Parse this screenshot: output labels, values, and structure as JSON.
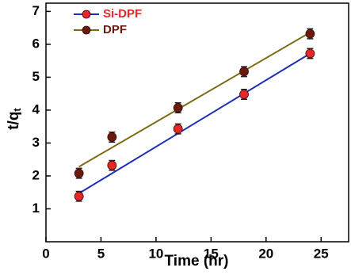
{
  "chart_data": {
    "type": "scatter",
    "x_label": "Time (hr)",
    "y_label": "t/q",
    "y_label_subscript": "t",
    "xlim": [
      0,
      27.5
    ],
    "ylim": [
      0,
      7.25
    ],
    "xticks": [
      0,
      5,
      10,
      15,
      20,
      25
    ],
    "yticks": [
      1,
      2,
      3,
      4,
      5,
      6,
      7
    ],
    "legend": "upper-left",
    "series": [
      {
        "name": "Si-DPF",
        "color": "#e8262a",
        "line_color": "#1f2fb5",
        "x": [
          3,
          6,
          12,
          18,
          24
        ],
        "values": [
          1.38,
          2.32,
          3.43,
          4.48,
          5.72
        ],
        "errors": [
          0.15,
          0.15,
          0.15,
          0.15,
          0.15
        ],
        "fit": {
          "x": [
            3,
            24
          ],
          "values": [
            1.47,
            5.72
          ]
        }
      },
      {
        "name": "DPF",
        "color": "#6b1a10",
        "line_color": "#7a6b14",
        "x": [
          3,
          6,
          12,
          18,
          24
        ],
        "values": [
          2.08,
          3.18,
          4.07,
          5.17,
          6.32
        ],
        "errors": [
          0.15,
          0.15,
          0.15,
          0.15,
          0.15
        ],
        "fit": {
          "x": [
            3,
            24
          ],
          "values": [
            2.28,
            6.36
          ]
        }
      }
    ]
  }
}
